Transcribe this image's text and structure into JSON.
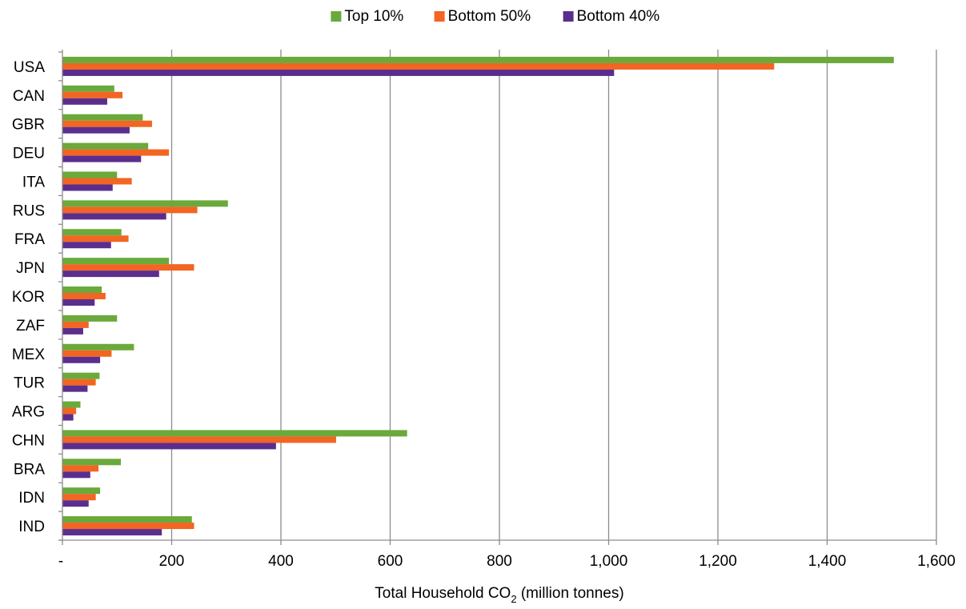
{
  "chart_data": {
    "type": "bar",
    "orientation": "horizontal",
    "title": "",
    "xlabel_prefix": "Total Household CO",
    "xlabel_subscript": "2",
    "xlabel_suffix": " (million tonnes)",
    "ylabel": "",
    "xlim": [
      0,
      1600
    ],
    "x_ticks": [
      0,
      200,
      400,
      600,
      800,
      1000,
      1200,
      1400,
      1600
    ],
    "x_tick_labels": [
      "-",
      "200",
      "400",
      "600",
      "800",
      "1,000",
      "1,200",
      "1,400",
      "1,600"
    ],
    "grid": "vertical",
    "legend_position": "top-center",
    "categories": [
      "USA",
      "CAN",
      "GBR",
      "DEU",
      "ITA",
      "RUS",
      "FRA",
      "JPN",
      "KOR",
      "ZAF",
      "MEX",
      "TUR",
      "ARG",
      "CHN",
      "BRA",
      "IDN",
      "IND"
    ],
    "series": [
      {
        "name": "Top 10%",
        "color": "#6aa93b",
        "values": [
          1522,
          95,
          147,
          157,
          100,
          303,
          108,
          195,
          72,
          100,
          131,
          68,
          33,
          631,
          107,
          69,
          237
        ]
      },
      {
        "name": "Bottom 50%",
        "color": "#f26522",
        "values": [
          1303,
          110,
          164,
          195,
          127,
          247,
          121,
          241,
          79,
          48,
          90,
          61,
          25,
          501,
          66,
          61,
          241
        ]
      },
      {
        "name": "Bottom 40%",
        "color": "#5b2e8e",
        "values": [
          1010,
          82,
          123,
          144,
          92,
          190,
          89,
          177,
          59,
          38,
          69,
          46,
          20,
          391,
          51,
          48,
          182
        ]
      }
    ]
  }
}
